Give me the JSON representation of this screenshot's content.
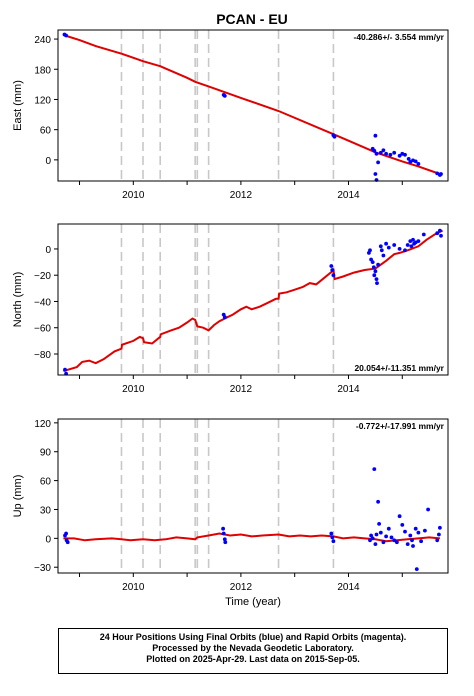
{
  "chart_data": {
    "type": "scatter",
    "title": "PCAN - EU",
    "xlabel": "Time (year)",
    "x_ticks": [
      "2010",
      "2012",
      "2014"
    ],
    "x_range": [
      2008.6,
      2015.85
    ],
    "event_lines": [
      2009.78,
      2010.18,
      2010.5,
      2011.15,
      2011.19,
      2011.4,
      2012.7,
      2013.72
    ],
    "series_colors": {
      "final_orbits": "#0000ff",
      "rapid_orbits": "#ff00ff",
      "model": "#e00000"
    },
    "panels": [
      {
        "ylabel": "East (mm)",
        "rate_label": "-40.286+/- 3.554 mm/yr",
        "rate_position": "top-right",
        "ylim": [
          -42,
          258
        ],
        "y_ticks": [
          240,
          180,
          120,
          60,
          0
        ],
        "model": [
          [
            2008.7,
            248
          ],
          [
            2009.0,
            238
          ],
          [
            2009.3,
            226
          ],
          [
            2009.78,
            211
          ],
          [
            2010.18,
            196
          ],
          [
            2010.5,
            186
          ],
          [
            2011.0,
            163
          ],
          [
            2011.15,
            155
          ],
          [
            2011.4,
            146
          ],
          [
            2012.0,
            123
          ],
          [
            2012.7,
            97
          ],
          [
            2013.72,
            51
          ],
          [
            2014.0,
            38
          ],
          [
            2014.5,
            15
          ],
          [
            2015.0,
            -3
          ],
          [
            2015.3,
            -13
          ],
          [
            2015.7,
            -28
          ]
        ],
        "points": [
          [
            2008.72,
            249
          ],
          [
            2008.75,
            247
          ],
          [
            2011.68,
            129
          ],
          [
            2011.7,
            127
          ],
          [
            2013.72,
            49
          ],
          [
            2013.74,
            46
          ],
          [
            2014.45,
            22
          ],
          [
            2014.48,
            18
          ],
          [
            2014.5,
            48
          ],
          [
            2014.52,
            12
          ],
          [
            2014.55,
            -5
          ],
          [
            2014.5,
            -28
          ],
          [
            2014.52,
            -40
          ],
          [
            2014.6,
            14
          ],
          [
            2014.65,
            19
          ],
          [
            2014.7,
            12
          ],
          [
            2014.78,
            10
          ],
          [
            2014.85,
            14
          ],
          [
            2014.95,
            8
          ],
          [
            2015.0,
            12
          ],
          [
            2015.05,
            10
          ],
          [
            2015.12,
            2
          ],
          [
            2015.15,
            -4
          ],
          [
            2015.2,
            -1
          ],
          [
            2015.25,
            -3
          ],
          [
            2015.3,
            -8
          ],
          [
            2015.65,
            -27
          ],
          [
            2015.7,
            -30
          ],
          [
            2015.72,
            -28
          ]
        ]
      },
      {
        "ylabel": "North (mm)",
        "rate_label": "20.054+/-11.351 mm/yr",
        "rate_position": "bottom-right",
        "ylim": [
          -96,
          19
        ],
        "y_ticks": [
          0,
          -20,
          -40,
          -60,
          -80
        ],
        "model": [
          [
            2008.7,
            -93
          ],
          [
            2008.95,
            -90
          ],
          [
            2009.05,
            -86
          ],
          [
            2009.18,
            -85
          ],
          [
            2009.3,
            -87
          ],
          [
            2009.45,
            -84
          ],
          [
            2009.65,
            -78
          ],
          [
            2009.78,
            -76
          ],
          [
            2009.79,
            -73
          ],
          [
            2010.0,
            -70
          ],
          [
            2010.12,
            -67
          ],
          [
            2010.18,
            -68
          ],
          [
            2010.2,
            -71
          ],
          [
            2010.35,
            -72
          ],
          [
            2010.47,
            -68
          ],
          [
            2010.5,
            -67
          ],
          [
            2010.51,
            -65
          ],
          [
            2010.7,
            -62
          ],
          [
            2010.85,
            -60
          ],
          [
            2011.0,
            -56
          ],
          [
            2011.1,
            -53
          ],
          [
            2011.15,
            -54
          ],
          [
            2011.19,
            -59
          ],
          [
            2011.3,
            -60
          ],
          [
            2011.4,
            -62
          ],
          [
            2011.5,
            -58
          ],
          [
            2011.6,
            -55
          ],
          [
            2011.75,
            -52
          ],
          [
            2011.85,
            -50
          ],
          [
            2012.0,
            -46
          ],
          [
            2012.1,
            -44
          ],
          [
            2012.2,
            -46
          ],
          [
            2012.35,
            -44
          ],
          [
            2012.5,
            -41
          ],
          [
            2012.65,
            -38
          ],
          [
            2012.7,
            -38
          ],
          [
            2012.71,
            -34
          ],
          [
            2012.85,
            -33
          ],
          [
            2013.0,
            -31
          ],
          [
            2013.15,
            -29
          ],
          [
            2013.28,
            -26
          ],
          [
            2013.4,
            -27
          ],
          [
            2013.55,
            -22
          ],
          [
            2013.7,
            -17
          ],
          [
            2013.72,
            -15
          ],
          [
            2013.74,
            -23
          ],
          [
            2013.9,
            -21
          ],
          [
            2014.1,
            -18
          ],
          [
            2014.3,
            -16
          ],
          [
            2014.5,
            -15
          ],
          [
            2014.7,
            -9
          ],
          [
            2014.85,
            -4
          ],
          [
            2014.95,
            -3
          ],
          [
            2015.1,
            -1
          ],
          [
            2015.3,
            2
          ],
          [
            2015.45,
            7
          ],
          [
            2015.6,
            11
          ],
          [
            2015.75,
            14
          ]
        ],
        "points": [
          [
            2008.73,
            -92
          ],
          [
            2008.75,
            -95
          ],
          [
            2011.68,
            -50
          ],
          [
            2011.7,
            -52
          ],
          [
            2013.68,
            -13
          ],
          [
            2013.7,
            -16
          ],
          [
            2013.72,
            -20
          ],
          [
            2014.38,
            -3
          ],
          [
            2014.4,
            -1
          ],
          [
            2014.42,
            -8
          ],
          [
            2014.45,
            -10
          ],
          [
            2014.47,
            -14
          ],
          [
            2014.48,
            -20
          ],
          [
            2014.5,
            -17
          ],
          [
            2014.52,
            -23
          ],
          [
            2014.53,
            -26
          ],
          [
            2014.55,
            -12
          ],
          [
            2014.6,
            2
          ],
          [
            2014.62,
            -1
          ],
          [
            2014.65,
            -5
          ],
          [
            2014.7,
            4
          ],
          [
            2014.75,
            1
          ],
          [
            2014.85,
            3
          ],
          [
            2014.95,
            0
          ],
          [
            2015.05,
            -1
          ],
          [
            2015.1,
            3
          ],
          [
            2015.15,
            6
          ],
          [
            2015.17,
            2
          ],
          [
            2015.2,
            7
          ],
          [
            2015.22,
            4
          ],
          [
            2015.25,
            5
          ],
          [
            2015.3,
            6
          ],
          [
            2015.4,
            11
          ],
          [
            2015.65,
            12
          ],
          [
            2015.7,
            14
          ],
          [
            2015.72,
            10
          ]
        ]
      },
      {
        "ylabel": "Up (mm)",
        "rate_label": "-0.772+/-17.991 mm/yr",
        "rate_position": "top-right",
        "ylim": [
          -36,
          124
        ],
        "y_ticks": [
          120,
          90,
          60,
          30,
          0,
          -30
        ],
        "model": [
          [
            2008.7,
            0
          ],
          [
            2008.9,
            0
          ],
          [
            2009.1,
            -2
          ],
          [
            2009.3,
            -1
          ],
          [
            2009.6,
            0
          ],
          [
            2009.78,
            -1
          ],
          [
            2009.95,
            -2
          ],
          [
            2010.18,
            -1
          ],
          [
            2010.4,
            -2
          ],
          [
            2010.6,
            -1
          ],
          [
            2010.8,
            1
          ],
          [
            2011.0,
            0
          ],
          [
            2011.15,
            -1
          ],
          [
            2011.19,
            1
          ],
          [
            2011.4,
            3
          ],
          [
            2011.6,
            5
          ],
          [
            2011.8,
            3
          ],
          [
            2012.0,
            4
          ],
          [
            2012.2,
            2
          ],
          [
            2012.4,
            3
          ],
          [
            2012.7,
            4
          ],
          [
            2012.9,
            2
          ],
          [
            2013.1,
            3
          ],
          [
            2013.3,
            2
          ],
          [
            2013.5,
            3
          ],
          [
            2013.72,
            2
          ],
          [
            2013.9,
            0
          ],
          [
            2014.1,
            1
          ],
          [
            2014.3,
            0
          ],
          [
            2014.5,
            -1
          ],
          [
            2014.7,
            -3
          ],
          [
            2014.9,
            -2
          ],
          [
            2015.1,
            -1
          ],
          [
            2015.3,
            0
          ],
          [
            2015.5,
            1
          ],
          [
            2015.7,
            0
          ]
        ],
        "points": [
          [
            2008.73,
            3
          ],
          [
            2008.75,
            5
          ],
          [
            2008.76,
            -2
          ],
          [
            2008.78,
            -4
          ],
          [
            2011.67,
            10
          ],
          [
            2011.68,
            5
          ],
          [
            2011.7,
            -1
          ],
          [
            2011.71,
            -4
          ],
          [
            2013.68,
            5
          ],
          [
            2013.7,
            1
          ],
          [
            2013.72,
            -3
          ],
          [
            2014.4,
            -2
          ],
          [
            2014.42,
            3
          ],
          [
            2014.45,
            0
          ],
          [
            2014.48,
            72
          ],
          [
            2014.5,
            -6
          ],
          [
            2014.52,
            4
          ],
          [
            2014.55,
            38
          ],
          [
            2014.57,
            15
          ],
          [
            2014.6,
            6
          ],
          [
            2014.65,
            -4
          ],
          [
            2014.7,
            2
          ],
          [
            2014.75,
            10
          ],
          [
            2014.8,
            1
          ],
          [
            2014.85,
            -2
          ],
          [
            2014.9,
            -4
          ],
          [
            2014.95,
            23
          ],
          [
            2015.0,
            14
          ],
          [
            2015.05,
            7
          ],
          [
            2015.1,
            -6
          ],
          [
            2015.15,
            3
          ],
          [
            2015.18,
            -2
          ],
          [
            2015.2,
            -8
          ],
          [
            2015.25,
            10
          ],
          [
            2015.27,
            -32
          ],
          [
            2015.3,
            6
          ],
          [
            2015.35,
            -3
          ],
          [
            2015.42,
            8
          ],
          [
            2015.48,
            30
          ],
          [
            2015.65,
            -2
          ],
          [
            2015.68,
            4
          ],
          [
            2015.7,
            11
          ]
        ]
      }
    ]
  },
  "footer": {
    "line1": "24 Hour Positions Using Final Orbits (blue) and Rapid Orbits (magenta).",
    "line2": "Processed by the Nevada Geodetic Laboratory.",
    "line3": "Plotted on 2025-Apr-29. Last data on 2015-Sep-05."
  }
}
